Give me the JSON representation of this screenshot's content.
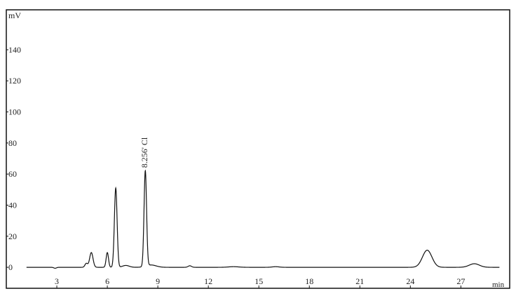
{
  "chart_data": {
    "type": "line",
    "ylabel": "mV",
    "xlabel": "min",
    "xlim": [
      0,
      29.9
    ],
    "ylim": [
      -13.5,
      165.7
    ],
    "x_ticks": [
      3,
      6,
      9,
      12,
      15,
      18,
      21,
      24,
      27
    ],
    "y_ticks": [
      0,
      20,
      40,
      60,
      80,
      100,
      120,
      140
    ],
    "grid": false,
    "peaks": [
      {
        "rt": 2.9,
        "height": -0.6,
        "width": 0.08
      },
      {
        "rt": 4.75,
        "height": 2.5,
        "width": 0.08
      },
      {
        "rt": 5.05,
        "height": 9.5,
        "width": 0.1
      },
      {
        "rt": 6.0,
        "height": 9.5,
        "width": 0.07
      },
      {
        "rt": 6.5,
        "height": 51,
        "width": 0.08
      },
      {
        "rt": 7.1,
        "height": 1.2,
        "width": 0.2
      },
      {
        "rt": 8.256,
        "height": 61.5,
        "width": 0.075
      },
      {
        "rt": 8.6,
        "height": 1.5,
        "width": 0.3
      },
      {
        "rt": 10.9,
        "height": 1.0,
        "width": 0.1
      },
      {
        "rt": 13.5,
        "height": 0.4,
        "width": 0.3
      },
      {
        "rt": 16.0,
        "height": 0.4,
        "width": 0.2
      },
      {
        "rt": 25.0,
        "height": 11,
        "width": 0.28
      },
      {
        "rt": 27.8,
        "height": 2.3,
        "width": 0.3
      }
    ],
    "annotations": [
      {
        "x": 8.256,
        "text": "8.256' Cl"
      }
    ]
  }
}
